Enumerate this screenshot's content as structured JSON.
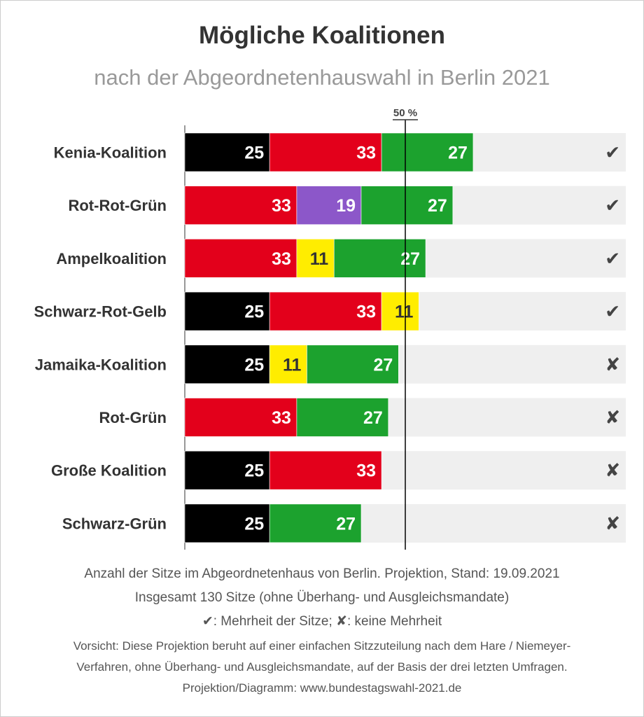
{
  "title": "Mögliche Koalitionen",
  "subtitle": "nach der Abgeordnetenhauswahl in Berlin 2021",
  "chart_data": {
    "type": "bar",
    "orientation": "horizontal-stacked",
    "total_seats": 130,
    "xlim": [
      0,
      130
    ],
    "threshold": {
      "label": "50 %",
      "value": 65
    },
    "colors": {
      "black": "#000000",
      "red": "#e3001b",
      "green": "#1ca22e",
      "purple": "#8c57c9",
      "yellow": "#ffed00",
      "track": "#efefef"
    },
    "categories": [
      "Kenia-Koalition",
      "Rot-Rot-Grün",
      "Ampelkoalition",
      "Schwarz-Rot-Gelb",
      "Jamaika-Koalition",
      "Rot-Grün",
      "Große Koalition",
      "Schwarz-Grün"
    ],
    "rows": [
      {
        "label": "Kenia-Koalition",
        "segments": [
          {
            "value": 25,
            "color": "black"
          },
          {
            "value": 33,
            "color": "red"
          },
          {
            "value": 27,
            "color": "green"
          }
        ],
        "majority": true
      },
      {
        "label": "Rot-Rot-Grün",
        "segments": [
          {
            "value": 33,
            "color": "red"
          },
          {
            "value": 19,
            "color": "purple"
          },
          {
            "value": 27,
            "color": "green"
          }
        ],
        "majority": true
      },
      {
        "label": "Ampelkoalition",
        "segments": [
          {
            "value": 33,
            "color": "red"
          },
          {
            "value": 11,
            "color": "yellow"
          },
          {
            "value": 27,
            "color": "green"
          }
        ],
        "majority": true
      },
      {
        "label": "Schwarz-Rot-Gelb",
        "segments": [
          {
            "value": 25,
            "color": "black"
          },
          {
            "value": 33,
            "color": "red"
          },
          {
            "value": 11,
            "color": "yellow"
          }
        ],
        "majority": true
      },
      {
        "label": "Jamaika-Koalition",
        "segments": [
          {
            "value": 25,
            "color": "black"
          },
          {
            "value": 11,
            "color": "yellow"
          },
          {
            "value": 27,
            "color": "green"
          }
        ],
        "majority": false
      },
      {
        "label": "Rot-Grün",
        "segments": [
          {
            "value": 33,
            "color": "red"
          },
          {
            "value": 27,
            "color": "green"
          }
        ],
        "majority": false
      },
      {
        "label": "Große Koalition",
        "segments": [
          {
            "value": 25,
            "color": "black"
          },
          {
            "value": 33,
            "color": "red"
          }
        ],
        "majority": false
      },
      {
        "label": "Schwarz-Grün",
        "segments": [
          {
            "value": 25,
            "color": "black"
          },
          {
            "value": 27,
            "color": "green"
          }
        ],
        "majority": false
      }
    ],
    "marks": {
      "majority": "✔",
      "no_majority": "✘"
    }
  },
  "footer": {
    "line1": "Anzahl der Sitze im Abgeordnetenhaus von Berlin. Projektion, Stand: 19.09.2021",
    "line2": "Insgesamt 130 Sitze (ohne Überhang- und Ausgleichsmandate)",
    "line3": "✔: Mehrheit der Sitze; ✘: keine Mehrheit",
    "note1": "Vorsicht: Diese Projektion beruht auf einer einfachen Sitzzuteilung nach dem Hare / Niemeyer-",
    "note2": "Verfahren, ohne Überhang- und Ausgleichsmandate, auf der Basis der drei letzten Umfragen.",
    "note3": "Projektion/Diagramm: www.bundestagswahl-2021.de"
  }
}
